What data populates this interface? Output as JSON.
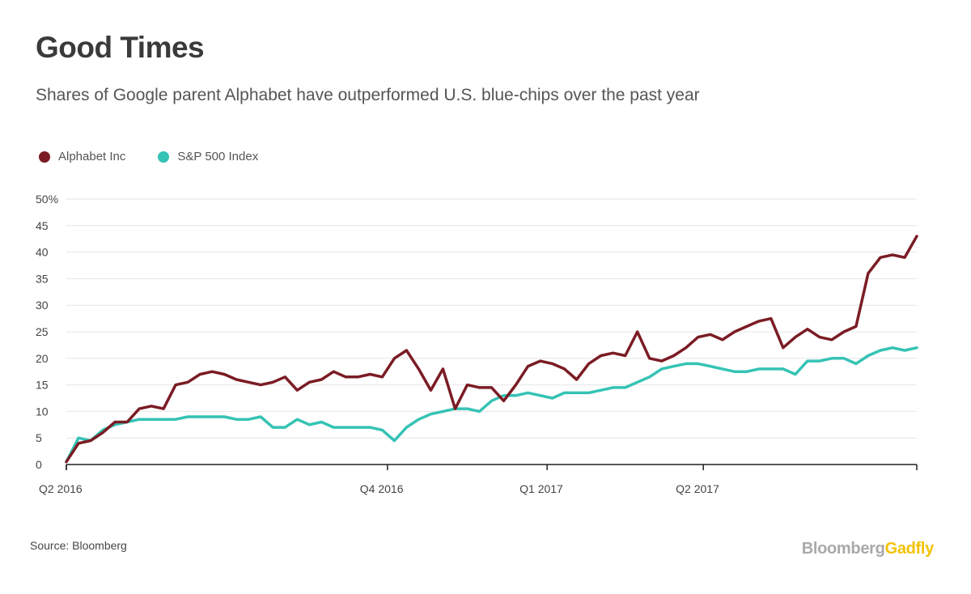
{
  "title": "Good Times",
  "subtitle": "Shares of Google parent Alphabet have outperformed U.S. blue-chips over the past year",
  "source": "Source: Bloomberg",
  "brand": {
    "part1": "Bloomberg",
    "part2": "Gadfly"
  },
  "colors": {
    "alphabet": "#7b1c24",
    "sp500": "#35c3b5",
    "grid": "#e6e6e6",
    "axis": "#222222",
    "brand_gray": "#a9a9a9",
    "brand_yellow": "#f2c200"
  },
  "chart_data": {
    "type": "line",
    "x_start": "2016-04-01",
    "x_end": "2017-08-04",
    "x_ticks": [
      {
        "label": "Q2 2016",
        "date": "2016-04-01"
      },
      {
        "label": "Q4 2016",
        "date": "2016-10-03"
      },
      {
        "label": "Q1 2017",
        "date": "2017-01-03"
      },
      {
        "label": "Q2 2017",
        "date": "2017-04-03"
      }
    ],
    "y_ticks": [
      "50%",
      "45",
      "40",
      "35",
      "30",
      "25",
      "20",
      "15",
      "10",
      "5",
      "0"
    ],
    "ylim": [
      0,
      50
    ],
    "grid": true,
    "legend_position": "top-left",
    "series": [
      {
        "name": "Alphabet Inc",
        "x": [
          "2016-04-01",
          "2016-04-08",
          "2016-04-15",
          "2016-04-22",
          "2016-04-29",
          "2016-05-06",
          "2016-05-13",
          "2016-05-20",
          "2016-05-27",
          "2016-06-03",
          "2016-06-10",
          "2016-06-17",
          "2016-06-24",
          "2016-07-01",
          "2016-07-08",
          "2016-07-15",
          "2016-07-22",
          "2016-07-29",
          "2016-08-05",
          "2016-08-12",
          "2016-08-19",
          "2016-08-26",
          "2016-09-02",
          "2016-09-09",
          "2016-09-16",
          "2016-09-23",
          "2016-09-30",
          "2016-10-07",
          "2016-10-14",
          "2016-10-21",
          "2016-10-28",
          "2016-11-04",
          "2016-11-11",
          "2016-11-18",
          "2016-11-25",
          "2016-12-02",
          "2016-12-09",
          "2016-12-16",
          "2016-12-23",
          "2016-12-30",
          "2017-01-06",
          "2017-01-13",
          "2017-01-20",
          "2017-01-27",
          "2017-02-03",
          "2017-02-10",
          "2017-02-17",
          "2017-02-24",
          "2017-03-03",
          "2017-03-10",
          "2017-03-17",
          "2017-03-24",
          "2017-03-31",
          "2017-04-07",
          "2017-04-14",
          "2017-04-21",
          "2017-04-28",
          "2017-05-05",
          "2017-05-12",
          "2017-05-19",
          "2017-05-26",
          "2017-06-02",
          "2017-06-09",
          "2017-06-16",
          "2017-06-23",
          "2017-06-30",
          "2017-07-07",
          "2017-07-14",
          "2017-07-21",
          "2017-07-28",
          "2017-08-04"
        ],
        "values": [
          0.5,
          4.0,
          4.5,
          6.0,
          8.0,
          8.0,
          10.5,
          11.0,
          10.5,
          15.0,
          15.5,
          17.0,
          17.5,
          17.0,
          16.0,
          15.5,
          15.0,
          15.5,
          16.5,
          14.0,
          15.5,
          16.0,
          17.5,
          16.5,
          16.5,
          17.0,
          16.5,
          20.0,
          21.5,
          18.0,
          14.0,
          18.0,
          10.5,
          15.0,
          14.5,
          14.5,
          12.0,
          15.0,
          18.5,
          19.5,
          19.0,
          18.0,
          16.0,
          19.0,
          20.5,
          21.0,
          20.5,
          25.0,
          20.0,
          19.5,
          20.5,
          22.0,
          24.0,
          24.5,
          23.5,
          25.0,
          26.0,
          27.0,
          27.5,
          22.0,
          24.0,
          25.5,
          24.0,
          23.5,
          25.0,
          26.0,
          36.0,
          39.0,
          39.5,
          39.0,
          43.0
        ]
      },
      {
        "name": "S&P 500 Index",
        "x": [
          "2016-04-01",
          "2016-04-08",
          "2016-04-15",
          "2016-04-22",
          "2016-04-29",
          "2016-05-06",
          "2016-05-13",
          "2016-05-20",
          "2016-05-27",
          "2016-06-03",
          "2016-06-10",
          "2016-06-17",
          "2016-06-24",
          "2016-07-01",
          "2016-07-08",
          "2016-07-15",
          "2016-07-22",
          "2016-07-29",
          "2016-08-05",
          "2016-08-12",
          "2016-08-19",
          "2016-08-26",
          "2016-09-02",
          "2016-09-09",
          "2016-09-16",
          "2016-09-23",
          "2016-09-30",
          "2016-10-07",
          "2016-10-14",
          "2016-10-21",
          "2016-10-28",
          "2016-11-04",
          "2016-11-11",
          "2016-11-18",
          "2016-11-25",
          "2016-12-02",
          "2016-12-09",
          "2016-12-16",
          "2016-12-23",
          "2016-12-30",
          "2017-01-06",
          "2017-01-13",
          "2017-01-20",
          "2017-01-27",
          "2017-02-03",
          "2017-02-10",
          "2017-02-17",
          "2017-02-24",
          "2017-03-03",
          "2017-03-10",
          "2017-03-17",
          "2017-03-24",
          "2017-03-31",
          "2017-04-07",
          "2017-04-14",
          "2017-04-21",
          "2017-04-28",
          "2017-05-05",
          "2017-05-12",
          "2017-05-19",
          "2017-05-26",
          "2017-06-02",
          "2017-06-09",
          "2017-06-16",
          "2017-06-23",
          "2017-06-30",
          "2017-07-07",
          "2017-07-14",
          "2017-07-21",
          "2017-07-28",
          "2017-08-04"
        ],
        "values": [
          0.5,
          5.0,
          4.5,
          6.5,
          7.5,
          8.0,
          8.5,
          8.5,
          8.5,
          8.5,
          9.0,
          9.0,
          9.0,
          9.0,
          8.5,
          8.5,
          9.0,
          7.0,
          7.0,
          8.5,
          7.5,
          8.0,
          7.0,
          7.0,
          7.0,
          7.0,
          6.5,
          4.5,
          7.0,
          8.5,
          9.5,
          10.0,
          10.5,
          10.5,
          10.0,
          12.0,
          13.0,
          13.0,
          13.5,
          13.0,
          12.5,
          13.5,
          13.5,
          13.5,
          14.0,
          14.5,
          14.5,
          15.5,
          16.5,
          18.0,
          18.5,
          19.0,
          19.0,
          18.5,
          18.0,
          17.5,
          17.5,
          18.0,
          18.0,
          18.0,
          17.0,
          19.5,
          19.5,
          20.0,
          20.0,
          19.0,
          20.5,
          21.5,
          22.0,
          21.5,
          22.0
        ]
      }
    ]
  }
}
